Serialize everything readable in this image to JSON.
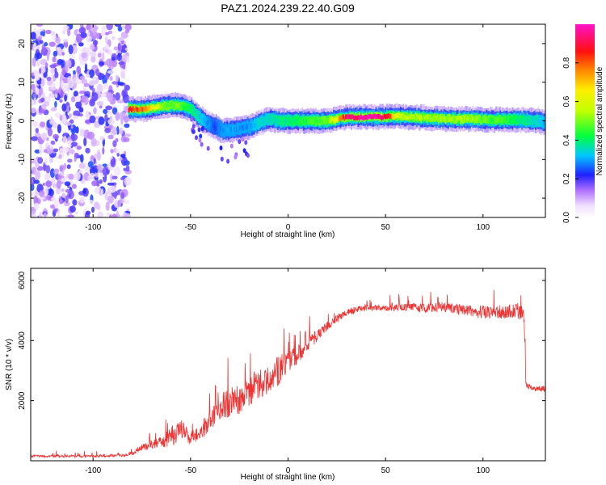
{
  "title": "PAZ1.2024.239.22.40.G09",
  "chart_data": [
    {
      "type": "heatmap",
      "xlabel": "Height of straight line (km)",
      "ylabel": "Frequency (Hz)",
      "xlim": [
        -132,
        132
      ],
      "ylim": [
        -25,
        25
      ],
      "xticks": [
        -100,
        -50,
        0,
        50,
        100
      ],
      "yticks": [
        -20,
        -10,
        0,
        10,
        20
      ],
      "grid": false,
      "colorbar": {
        "label": "Normalized spectral amplitude",
        "range": [
          0,
          1
        ],
        "ticks": [
          0.0,
          0.2,
          0.4,
          0.6,
          0.8
        ]
      },
      "noise_region_x": [
        -132,
        -82
      ],
      "ridge": {
        "x": [
          -82,
          -75,
          -68,
          -62,
          -56,
          -50,
          -46,
          -42,
          -38,
          -34,
          -30,
          -25,
          -20,
          -15,
          -10,
          -5,
          0,
          10,
          20,
          25,
          30,
          40,
          50,
          55,
          60,
          70,
          80,
          90,
          100,
          110,
          120,
          128,
          132
        ],
        "freq": [
          3,
          3,
          3.5,
          4,
          4,
          3,
          1,
          -0.5,
          -1.5,
          -2.5,
          -2.5,
          -2,
          -1.5,
          -0.5,
          0.5,
          0,
          0,
          0,
          0,
          0.5,
          1,
          1,
          1,
          1.2,
          1,
          0.8,
          0.5,
          0.5,
          0.3,
          0.3,
          0.2,
          0,
          -0.5
        ],
        "peak": [
          0.9,
          0.8,
          0.6,
          0.5,
          0.5,
          0.4,
          0.35,
          0.3,
          0.25,
          0.3,
          0.3,
          0.3,
          0.3,
          0.35,
          0.35,
          0.4,
          0.4,
          0.45,
          0.5,
          0.7,
          0.95,
          1.0,
          0.95,
          0.6,
          0.55,
          0.55,
          0.55,
          0.55,
          0.5,
          0.45,
          0.4,
          0.35,
          0.3
        ]
      }
    },
    {
      "type": "line",
      "xlabel": "Height of straight line (km)",
      "ylabel": "SNR (10 * v/v)",
      "xlim": [
        -132,
        132
      ],
      "ylim": [
        0,
        6400
      ],
      "xticks": [
        -100,
        -50,
        0,
        50,
        100
      ],
      "yticks": [
        2000,
        4000,
        6000
      ],
      "color": "#ee3333",
      "series": [
        {
          "x": [
            -132,
            -100,
            -85,
            -80,
            -75,
            -70,
            -65,
            -60,
            -55,
            -50,
            -45,
            -40,
            -35,
            -30,
            -25,
            -20,
            -15,
            -10,
            -5,
            0,
            5,
            10,
            15,
            20,
            25,
            30,
            40,
            50,
            60,
            70,
            80,
            90,
            100,
            110,
            118,
            121,
            122,
            125,
            132
          ],
          "y": [
            150,
            150,
            170,
            230,
            420,
            520,
            600,
            780,
            1000,
            760,
            880,
            1300,
            1750,
            1800,
            2000,
            2300,
            2500,
            2650,
            2950,
            3250,
            3500,
            3850,
            4150,
            4450,
            4700,
            4920,
            5100,
            5050,
            5100,
            5060,
            5100,
            5000,
            4900,
            4950,
            4950,
            4850,
            2500,
            2400,
            2380
          ],
          "noise": [
            80,
            80,
            80,
            120,
            260,
            320,
            380,
            700,
            700,
            500,
            450,
            700,
            900,
            1200,
            1000,
            1100,
            1000,
            900,
            1000,
            700,
            600,
            500,
            400,
            300,
            300,
            250,
            200,
            200,
            250,
            300,
            350,
            350,
            450,
            500,
            550,
            500,
            200,
            200,
            200
          ]
        }
      ]
    }
  ]
}
